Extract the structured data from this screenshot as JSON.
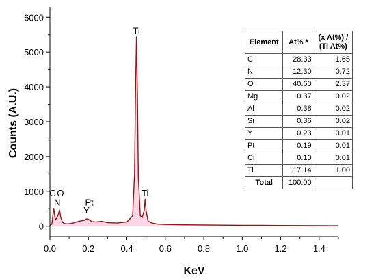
{
  "chart_data": {
    "type": "line",
    "title": "",
    "xlabel": "KeV",
    "ylabel": "Counts (A.U.)",
    "xlim": [
      0,
      1.5
    ],
    "ylim": [
      -300,
      6300
    ],
    "xticks": [
      "0.0",
      "0.2",
      "0.4",
      "0.6",
      "0.8",
      "1.0",
      "1.2",
      "1.4"
    ],
    "xtick_values": [
      0,
      0.2,
      0.4,
      0.6,
      0.8,
      1.0,
      1.2,
      1.4
    ],
    "yticks": [
      "0",
      "1000",
      "2000",
      "3000",
      "4000",
      "5000",
      "6000"
    ],
    "ytick_values": [
      0,
      1000,
      2000,
      3000,
      4000,
      5000,
      6000
    ],
    "grid": false,
    "line_color": "#8b1a1a",
    "fill_color": "#f4a3c8",
    "series": [
      {
        "x": [
          0,
          0.01,
          0.02,
          0.028,
          0.036,
          0.042,
          0.05,
          0.056,
          0.065,
          0.08,
          0.1,
          0.12,
          0.15,
          0.18,
          0.19,
          0.2,
          0.21,
          0.22,
          0.24,
          0.27,
          0.3,
          0.35,
          0.4,
          0.43,
          0.44,
          0.445,
          0.45,
          0.455,
          0.46,
          0.47,
          0.48,
          0.49,
          0.495,
          0.5,
          0.51,
          0.53,
          0.56,
          0.6,
          0.7,
          0.8,
          0.9,
          1.0,
          1.1,
          1.2,
          1.3,
          1.4,
          1.5
        ],
        "y": [
          20,
          60,
          520,
          180,
          240,
          310,
          470,
          260,
          110,
          70,
          70,
          90,
          140,
          170,
          210,
          200,
          160,
          130,
          120,
          140,
          100,
          90,
          120,
          300,
          1500,
          3800,
          5450,
          3800,
          1400,
          300,
          250,
          450,
          780,
          450,
          150,
          90,
          60,
          50,
          40,
          35,
          30,
          25,
          25,
          20,
          18,
          15,
          12
        ]
      }
    ],
    "annotations": [
      {
        "text": "Ti",
        "x": 0.45,
        "y": 5450
      },
      {
        "text": "Ti",
        "x": 0.495,
        "y": 780
      },
      {
        "text": "C",
        "x": 0.015,
        "y": 780
      },
      {
        "text": "O",
        "x": 0.055,
        "y": 780
      },
      {
        "text": "N",
        "x": 0.038,
        "y": 520
      },
      {
        "text": "Pt",
        "x": 0.205,
        "y": 520
      },
      {
        "text": "Y",
        "x": 0.19,
        "y": 290
      }
    ]
  },
  "table": {
    "headers": [
      "Element",
      "At% *",
      "(x At%) /\n(Ti At%)"
    ],
    "rows": [
      [
        "C",
        "28.33",
        "1.65"
      ],
      [
        "N",
        "12.30",
        "0.72"
      ],
      [
        "O",
        "40.60",
        "2.37"
      ],
      [
        "Mg",
        "0.37",
        "0.02"
      ],
      [
        "Al",
        "0.38",
        "0.02"
      ],
      [
        "Si",
        "0.36",
        "0.02"
      ],
      [
        "Y",
        "0.23",
        "0.01"
      ],
      [
        "Pt",
        "0.19",
        "0.01"
      ],
      [
        "Cl",
        "0.10",
        "0.01"
      ],
      [
        "Ti",
        "17.14",
        "1.00"
      ]
    ],
    "total_label": "Total",
    "total_value": "100.00"
  }
}
